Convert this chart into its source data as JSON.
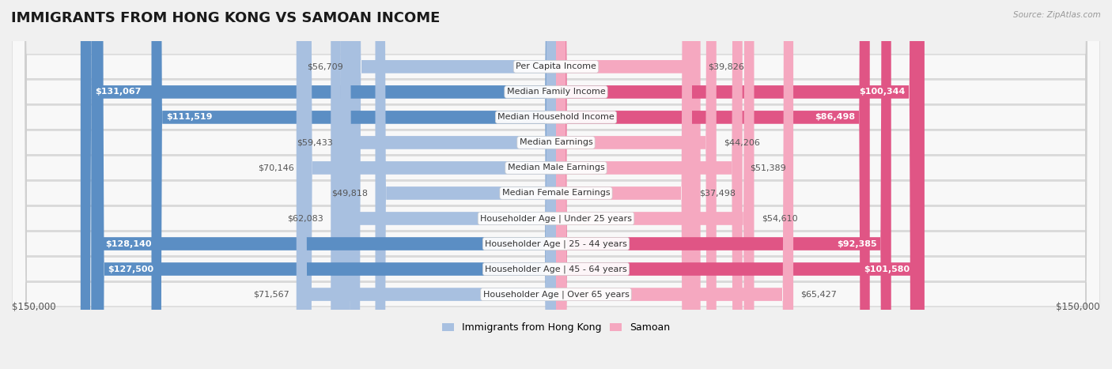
{
  "title": "IMMIGRANTS FROM HONG KONG VS SAMOAN INCOME",
  "source": "Source: ZipAtlas.com",
  "categories": [
    "Per Capita Income",
    "Median Family Income",
    "Median Household Income",
    "Median Earnings",
    "Median Male Earnings",
    "Median Female Earnings",
    "Householder Age | Under 25 years",
    "Householder Age | 25 - 44 years",
    "Householder Age | 45 - 64 years",
    "Householder Age | Over 65 years"
  ],
  "hk_values": [
    56709,
    131067,
    111519,
    59433,
    70146,
    49818,
    62083,
    128140,
    127500,
    71567
  ],
  "samoan_values": [
    39826,
    100344,
    86498,
    44206,
    51389,
    37498,
    54610,
    92385,
    101580,
    65427
  ],
  "hk_labels": [
    "$56,709",
    "$131,067",
    "$111,519",
    "$59,433",
    "$70,146",
    "$49,818",
    "$62,083",
    "$128,140",
    "$127,500",
    "$71,567"
  ],
  "samoan_labels": [
    "$39,826",
    "$100,344",
    "$86,498",
    "$44,206",
    "$51,389",
    "$37,498",
    "$54,610",
    "$92,385",
    "$101,580",
    "$65,427"
  ],
  "hk_color_light": "#a8c0e0",
  "hk_color_dark": "#5b8ec4",
  "samoan_color_light": "#f5a8c0",
  "samoan_color_dark": "#e05585",
  "max_value": 150000,
  "background_color": "#f0f0f0",
  "row_bg_even": "#f8f8f8",
  "row_bg_odd": "#ffffff",
  "row_border_color": "#d0d0d0",
  "axis_label_left": "$150,000",
  "axis_label_right": "$150,000",
  "legend_hk": "Immigrants from Hong Kong",
  "legend_samoan": "Samoan",
  "title_fontsize": 13,
  "label_fontsize": 8,
  "cat_fontsize": 8,
  "inside_threshold_hk": 85000,
  "inside_threshold_sam": 85000
}
